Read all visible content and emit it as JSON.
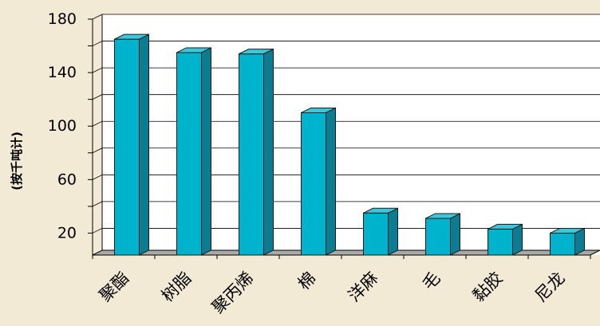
{
  "chart_data": {
    "type": "bar",
    "title": "",
    "xlabel": "",
    "ylabel": "(按千吨计)",
    "categories": [
      "聚酯",
      "树脂",
      "聚丙烯",
      "棉",
      "洋麻",
      "毛",
      "黏胶",
      "尼龙"
    ],
    "values": [
      165,
      155,
      154,
      110,
      35,
      31,
      23,
      20
    ],
    "ylim": [
      0,
      180
    ],
    "yticks": [
      20,
      60,
      100,
      140,
      180
    ],
    "grid": true,
    "legend": "none",
    "style": "3d-bar",
    "colors": {
      "bar_front": "#00b3cc",
      "bar_side": "#0a7d92",
      "bar_top": "#39c9dd",
      "bar_edge": "#1a1a1a",
      "plot_bg": "#ffffff",
      "grid": "#000000"
    }
  }
}
